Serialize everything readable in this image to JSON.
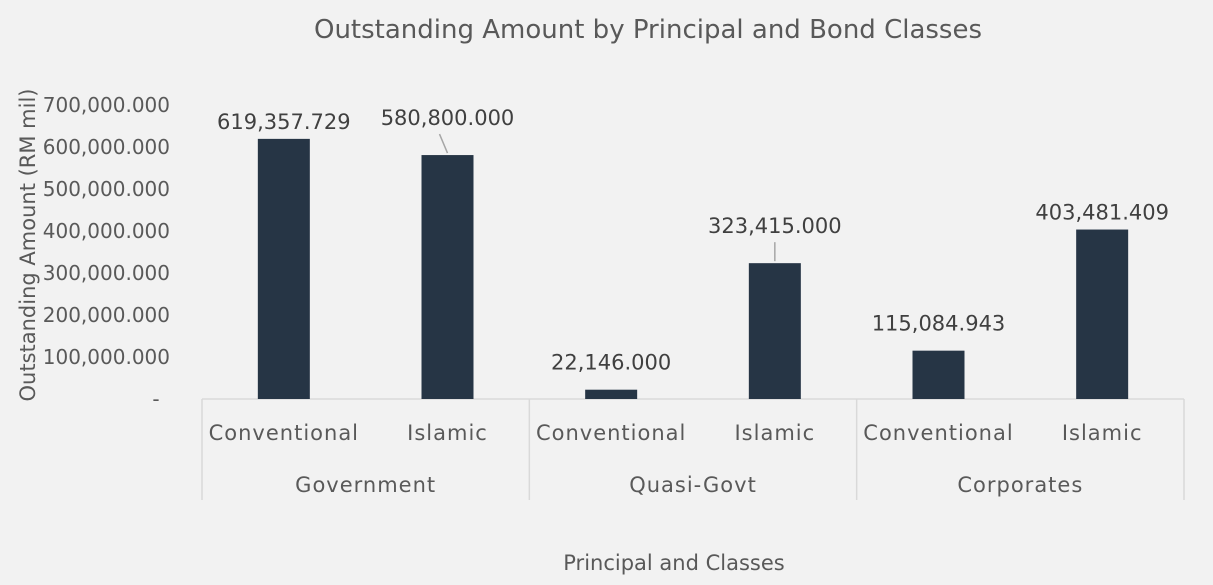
{
  "chart_data": {
    "type": "bar",
    "title": "Outstanding Amount by Principal and Bond Classes",
    "xlabel": "Principal and Classes",
    "ylabel": "Outstanding Amount (RM mil)",
    "ylim": [
      0,
      700000
    ],
    "y_ticks": [
      0,
      100000,
      200000,
      300000,
      400000,
      500000,
      600000,
      700000
    ],
    "y_tick_labels": [
      "-",
      "100,000.000",
      "200,000.000",
      "300,000.000",
      "400,000.000",
      "500,000.000",
      "600,000.000",
      "700,000.000"
    ],
    "groups": [
      {
        "name": "Government",
        "categories": [
          "Conventional",
          "Islamic"
        ],
        "values": [
          619357.729,
          580800.0
        ],
        "value_labels": [
          "619,357.729",
          "580,800.000"
        ]
      },
      {
        "name": "Quasi-Govt",
        "categories": [
          "Conventional",
          "Islamic"
        ],
        "values": [
          22146.0,
          323415.0
        ],
        "value_labels": [
          "22,146.000",
          "323,415.000"
        ]
      },
      {
        "name": "Corporates",
        "categories": [
          "Conventional",
          "Islamic"
        ],
        "values": [
          115084.943,
          403481.409
        ],
        "value_labels": [
          "115,084.943",
          "403,481.409"
        ]
      }
    ],
    "grid": false,
    "legend": "none",
    "colors": {
      "bar": "#263545",
      "text": "#595959",
      "title": "#595959",
      "value_label": "#404040",
      "axis_line": "#d9d9d9",
      "leader_line": "#a6a6a6",
      "background": "#f2f2f2"
    }
  }
}
